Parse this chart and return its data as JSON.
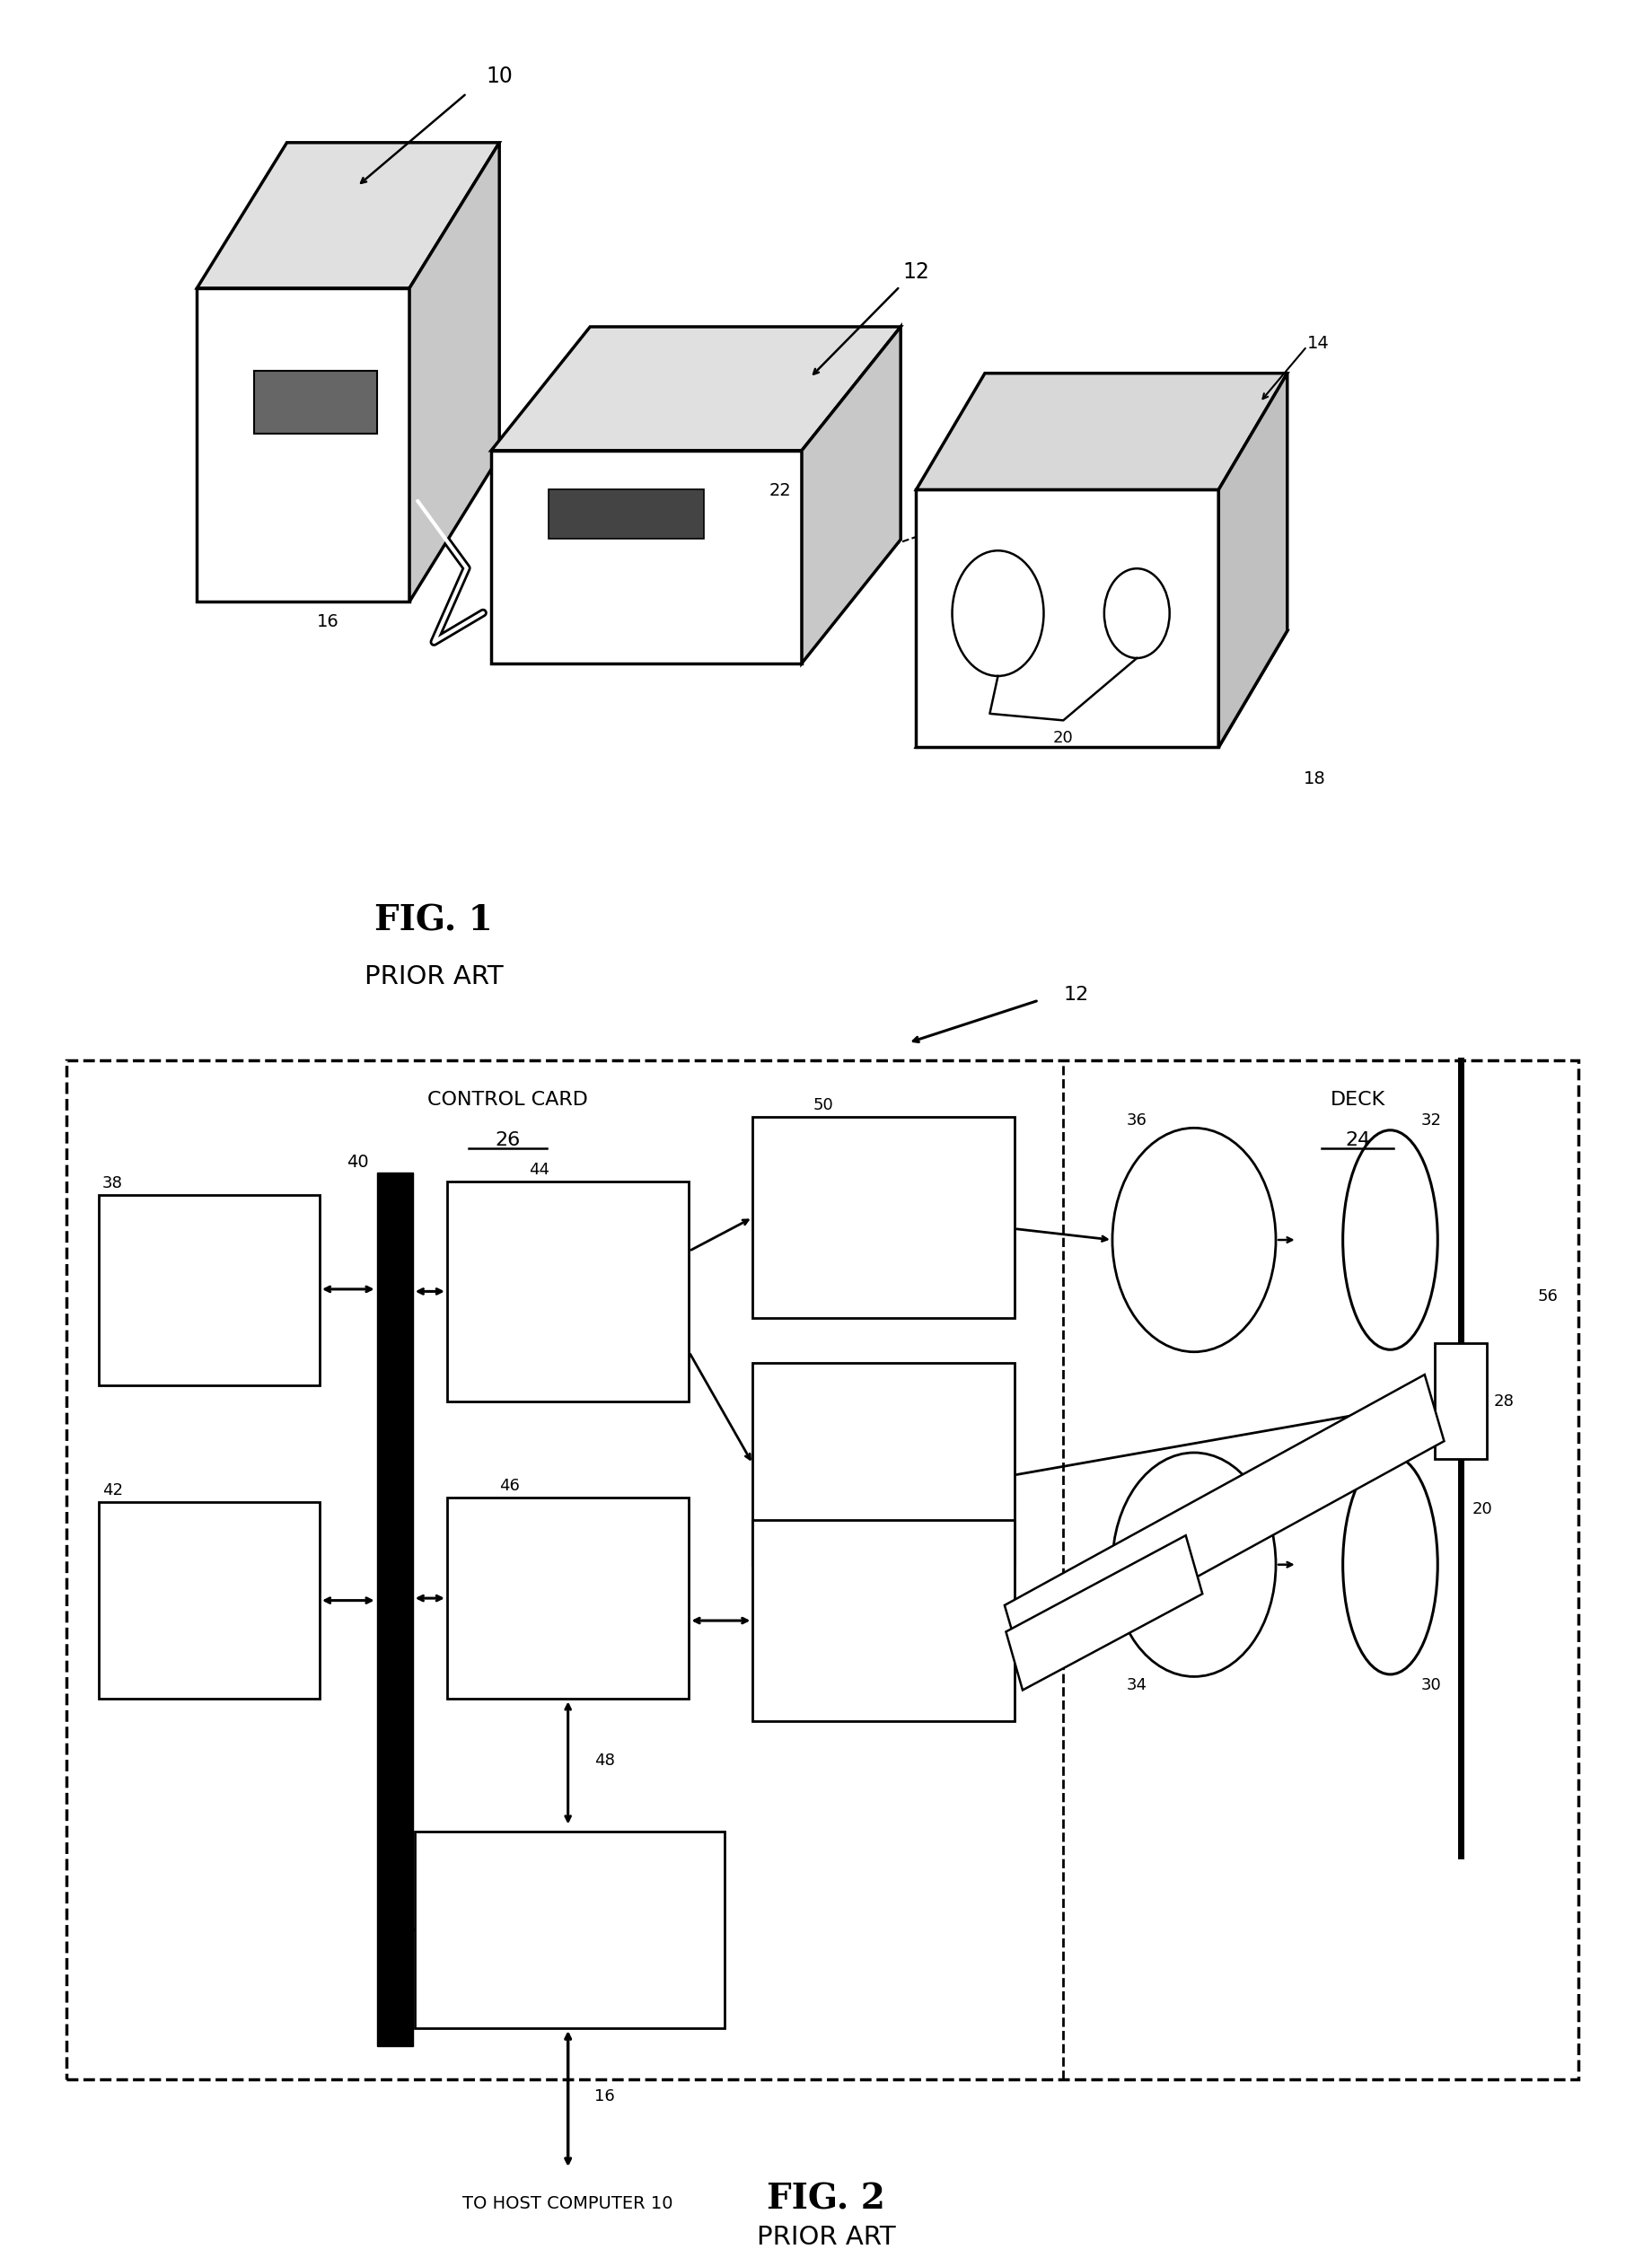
{
  "fig1_label": "FIG. 1",
  "fig1_sub": "PRIOR ART",
  "fig2_label": "FIG. 2",
  "fig2_sub": "PRIOR ART",
  "bg_color": "#ffffff",
  "line_color": "#000000",
  "control_card_label": "CONTROL CARD",
  "control_card_num": "26",
  "deck_label": "DECK",
  "deck_num": "24",
  "to_host": "TO HOST COMPUTER 10"
}
